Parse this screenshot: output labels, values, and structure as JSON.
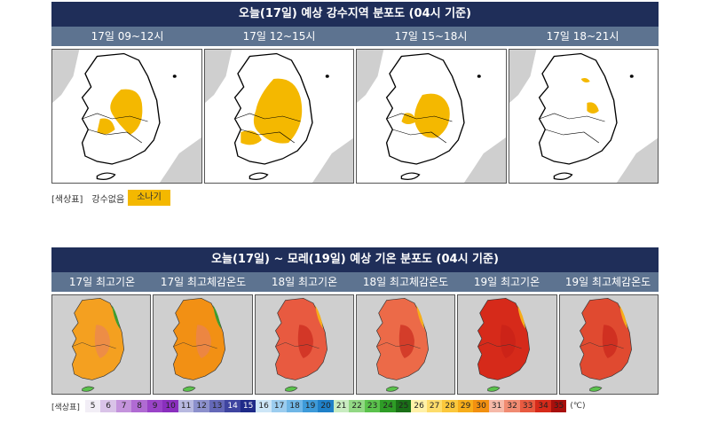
{
  "panel1": {
    "title": "오늘(17일) 예상 강수지역 분포도 (04시 기준)",
    "tabs": [
      "17일 09~12시",
      "17일 12~15시",
      "17일 15~18시",
      "17일 18~21시"
    ],
    "legend_label": "[색상표]",
    "legend_items": [
      {
        "label": "강수없음",
        "color": "#ffffff"
      },
      {
        "label": "소나기",
        "color": "#f4b800"
      }
    ]
  },
  "panel2": {
    "title": "오늘(17일) ~ 모레(19일) 예상 기온 분포도 (04시 기준)",
    "tabs": [
      "17일 최고기온",
      "17일 최고체감온도",
      "18일 최고기온",
      "18일 최고체감온도",
      "19일 최고기온",
      "19일 최고체감온도"
    ],
    "legend_label": "[색상표]",
    "legend_unit": "(℃)",
    "scale": [
      {
        "v": "5",
        "c": "#f2eef6"
      },
      {
        "v": "6",
        "c": "#d9c3e8"
      },
      {
        "v": "7",
        "c": "#c493dc"
      },
      {
        "v": "8",
        "c": "#b06bd3"
      },
      {
        "v": "9",
        "c": "#9a43c8"
      },
      {
        "v": "10",
        "c": "#8a2fbe"
      },
      {
        "v": "11",
        "c": "#b8b9e0"
      },
      {
        "v": "12",
        "c": "#8c90cc"
      },
      {
        "v": "13",
        "c": "#6468b8"
      },
      {
        "v": "14",
        "c": "#3e44a0"
      },
      {
        "v": "15",
        "c": "#1e2a88"
      },
      {
        "v": "16",
        "c": "#cde6f7"
      },
      {
        "v": "17",
        "c": "#9ccdef"
      },
      {
        "v": "18",
        "c": "#6fb6e6"
      },
      {
        "v": "19",
        "c": "#3e9bd9"
      },
      {
        "v": "20",
        "c": "#1f80c8"
      },
      {
        "v": "21",
        "c": "#c9ecc1"
      },
      {
        "v": "22",
        "c": "#92d884"
      },
      {
        "v": "23",
        "c": "#5bc24c"
      },
      {
        "v": "24",
        "c": "#2e9c26"
      },
      {
        "v": "25",
        "c": "#1a6f17"
      },
      {
        "v": "26",
        "c": "#fff1a8"
      },
      {
        "v": "27",
        "c": "#fddc6b"
      },
      {
        "v": "28",
        "c": "#fbc83c"
      },
      {
        "v": "29",
        "c": "#f7ad1a"
      },
      {
        "v": "30",
        "c": "#f29010"
      },
      {
        "v": "31",
        "c": "#f6b9a9"
      },
      {
        "v": "32",
        "c": "#f08b72"
      },
      {
        "v": "33",
        "c": "#e85a40"
      },
      {
        "v": "34",
        "c": "#d62a1a"
      },
      {
        "v": "35",
        "c": "#a80f0c"
      }
    ]
  },
  "colors": {
    "title_bg": "#1f2e59",
    "tab_bg": "#5d7390",
    "shower": "#f4b800"
  }
}
